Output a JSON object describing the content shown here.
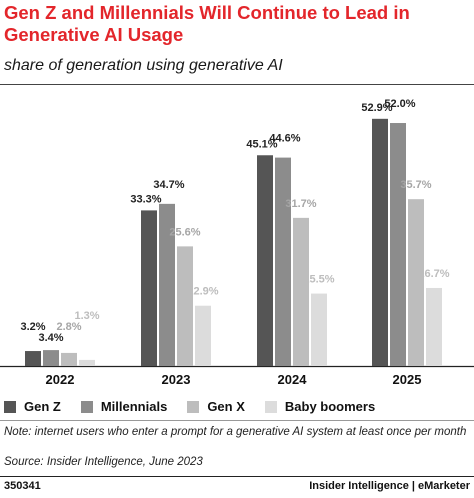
{
  "header": {
    "title": "Gen Z and Millennials Will Continue to Lead in Generative AI Usage",
    "subtitle": "share of generation using generative AI"
  },
  "chart_data": {
    "type": "bar",
    "categories": [
      "2022",
      "2023",
      "2024",
      "2025"
    ],
    "series": [
      {
        "name": "Gen Z",
        "color": "#555555",
        "values": [
          3.2,
          33.3,
          45.1,
          52.9
        ],
        "labels": [
          "3.2%",
          "33.3%",
          "45.1%",
          "52.9%"
        ]
      },
      {
        "name": "Millennials",
        "color": "#8c8c8c",
        "values": [
          3.4,
          34.7,
          44.6,
          52.0
        ],
        "labels": [
          "3.4%",
          "34.7%",
          "44.6%",
          "52.0%"
        ]
      },
      {
        "name": "Gen X",
        "color": "#bdbdbd",
        "values": [
          2.8,
          25.6,
          31.7,
          35.7
        ],
        "labels": [
          "2.8%",
          "25.6%",
          "31.7%",
          "35.7%"
        ]
      },
      {
        "name": "Baby boomers",
        "color": "#dcdcdc",
        "values": [
          1.3,
          12.9,
          15.5,
          16.7
        ],
        "labels": [
          "1.3%",
          "12.9%",
          "15.5%",
          "16.7%"
        ]
      }
    ],
    "ylim": [
      0,
      55
    ],
    "label_colors": [
      "#222222",
      "#222222",
      "#a6a6a6",
      "#bdbdbd"
    ],
    "grid": false,
    "legend": "bottom"
  },
  "legend": {
    "items": [
      {
        "label": "Gen Z",
        "color": "#555555"
      },
      {
        "label": "Millennials",
        "color": "#8c8c8c"
      },
      {
        "label": "Gen X",
        "color": "#bdbdbd"
      },
      {
        "label": "Baby boomers",
        "color": "#dcdcdc"
      }
    ]
  },
  "notes": {
    "note": "Note: internet users who enter a prompt for a generative AI system at least once per month",
    "source": "Source: Insider Intelligence, June 2023"
  },
  "footer": {
    "chart_id": "350341",
    "brand": "Insider Intelligence | eMarketer"
  }
}
